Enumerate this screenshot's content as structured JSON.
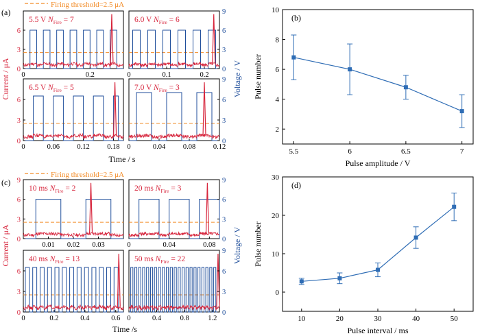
{
  "colors": {
    "current": "#d7263d",
    "voltage": "#1f4e9b",
    "threshold": "#f28c28",
    "fit": "#2f6db5",
    "axis": "#000000"
  },
  "top_block": {
    "label": "(a)",
    "threshold": "Firing threshold=2.5 μA",
    "ylabel_left": "Current / μA",
    "ylabel_right": "Voltage / V",
    "xlabel": "Time / s"
  },
  "bottom_block": {
    "label": "(c)",
    "threshold": "Firing threshold=2.5 μA",
    "ylabel_left": "Current / μA",
    "ylabel_right": "Voltage / V",
    "xlabel": "Time /s"
  },
  "panel_b_label": "(b)",
  "panel_d_label": "(d)",
  "chart_data": [
    {
      "type": "line",
      "panel": "(a)",
      "subplots": [
        {
          "amp": "5.5 V",
          "nfire": "7",
          "xticks": [
            "0",
            "0.2"
          ],
          "xlim": [
            0,
            0.3
          ],
          "ylim": [
            0,
            9
          ],
          "pulse_v": 6,
          "pulses": [
            [
              0.02,
              0.04
            ],
            [
              0.06,
              0.08
            ],
            [
              0.1,
              0.12
            ],
            [
              0.14,
              0.16
            ],
            [
              0.18,
              0.2
            ],
            [
              0.22,
              0.24
            ],
            [
              0.26,
              0.28
            ]
          ],
          "spikes": [
            0.265
          ]
        },
        {
          "amp": "6.0 V",
          "nfire": "6",
          "xticks": [
            "0",
            "0.1",
            "0.2"
          ],
          "xlim": [
            0,
            0.24
          ],
          "ylim": [
            0,
            9
          ],
          "pulse_v": 6,
          "pulses": [
            [
              0.01,
              0.03
            ],
            [
              0.05,
              0.07
            ],
            [
              0.09,
              0.11
            ],
            [
              0.13,
              0.15
            ],
            [
              0.17,
              0.19
            ],
            [
              0.21,
              0.23
            ]
          ],
          "spikes": [
            0.225
          ]
        },
        {
          "amp": "6.5 V",
          "nfire": "5",
          "xticks": [
            "0",
            "0.06",
            "0.12",
            "0.18"
          ],
          "xlim": [
            0,
            0.2
          ],
          "ylim": [
            0,
            9
          ],
          "pulse_v": 6.5,
          "pulses": [
            [
              0.02,
              0.04
            ],
            [
              0.06,
              0.08
            ],
            [
              0.1,
              0.12
            ],
            [
              0.14,
              0.16
            ],
            [
              0.18,
              0.19
            ]
          ],
          "spikes": [
            0.183
          ]
        },
        {
          "amp": "7.0 V",
          "nfire": "3",
          "xticks": [
            "0",
            "0.04",
            "0.08",
            "0.12"
          ],
          "xlim": [
            0,
            0.12
          ],
          "ylim": [
            0,
            9
          ],
          "pulse_v": 7,
          "pulses": [
            [
              0.01,
              0.03
            ],
            [
              0.05,
              0.07
            ],
            [
              0.09,
              0.11
            ]
          ],
          "spikes": [
            0.1
          ]
        }
      ],
      "ylim": [
        0,
        9
      ],
      "yticks_left": [
        "0",
        "3",
        "6",
        "9"
      ],
      "yticks_right": [
        "0",
        "3",
        "6",
        "9"
      ],
      "threshold": 2.5
    },
    {
      "type": "line",
      "panel": "(b)",
      "xlabel": "Pulse amplitude / V",
      "ylabel": "Pulse number",
      "xticks": [
        "5.5",
        "6",
        "6.5",
        "7"
      ],
      "yticks": [
        "2",
        "4",
        "6",
        "8",
        "10"
      ],
      "xlim": [
        5.4,
        7.1
      ],
      "ylim": [
        1,
        10
      ],
      "x": [
        5.5,
        6.0,
        6.5,
        7.0
      ],
      "values": [
        6.8,
        6.0,
        4.8,
        3.2
      ],
      "err": [
        1.5,
        1.7,
        0.8,
        1.1
      ]
    },
    {
      "type": "line",
      "panel": "(c)",
      "subplots": [
        {
          "interval": "10 ms",
          "nfire": "2",
          "xticks": [
            "0.01",
            "0.02",
            "0.03"
          ],
          "xlim": [
            0,
            0.04
          ],
          "ylim": [
            0,
            9
          ],
          "pulse_v": 6,
          "pulses": [
            [
              0.005,
              0.015
            ],
            [
              0.025,
              0.035
            ]
          ],
          "spikes": [
            0.027
          ]
        },
        {
          "interval": "20 ms",
          "nfire": "3",
          "xticks": [
            "0",
            "0.04",
            "0.08"
          ],
          "xlim": [
            0,
            0.09
          ],
          "ylim": [
            0,
            9
          ],
          "pulse_v": 6,
          "pulses": [
            [
              0.01,
              0.03
            ],
            [
              0.04,
              0.06
            ],
            [
              0.07,
              0.09
            ]
          ],
          "spikes": [
            0.078
          ]
        },
        {
          "interval": "40 ms",
          "nfire": "13",
          "xticks": [
            "0",
            "0.2",
            "0.4",
            "0.6"
          ],
          "xlim": [
            0,
            0.65
          ],
          "ylim": [
            0,
            9
          ],
          "pulse_v": 6.5,
          "pulse_count": 13,
          "spikes": [
            0.62
          ]
        },
        {
          "interval": "50 ms",
          "nfire": "22",
          "xticks": [
            "0",
            "0.4",
            "0.8",
            "1.2"
          ],
          "xlim": [
            0,
            1.3
          ],
          "ylim": [
            0,
            9
          ],
          "pulse_v": 6.5,
          "pulse_count": 22,
          "spikes": [
            1.28
          ]
        }
      ],
      "ylim": [
        0,
        9
      ],
      "yticks_left": [
        "0",
        "3",
        "6",
        "9"
      ],
      "yticks_right": [
        "0",
        "3",
        "6",
        "9"
      ],
      "threshold": 2.5
    },
    {
      "type": "line",
      "panel": "(d)",
      "xlabel": "Pulse interval / ms",
      "ylabel": "Pulse number",
      "xticks": [
        "10",
        "20",
        "30",
        "40",
        "50"
      ],
      "yticks": [
        "0",
        "10",
        "20",
        "30"
      ],
      "xlim": [
        5,
        55
      ],
      "ylim": [
        -5,
        30
      ],
      "x": [
        10,
        20,
        30,
        40,
        50
      ],
      "values": [
        2.8,
        3.6,
        5.8,
        14.2,
        22.2
      ],
      "err": [
        0.8,
        1.4,
        1.8,
        2.8,
        3.6
      ]
    }
  ]
}
